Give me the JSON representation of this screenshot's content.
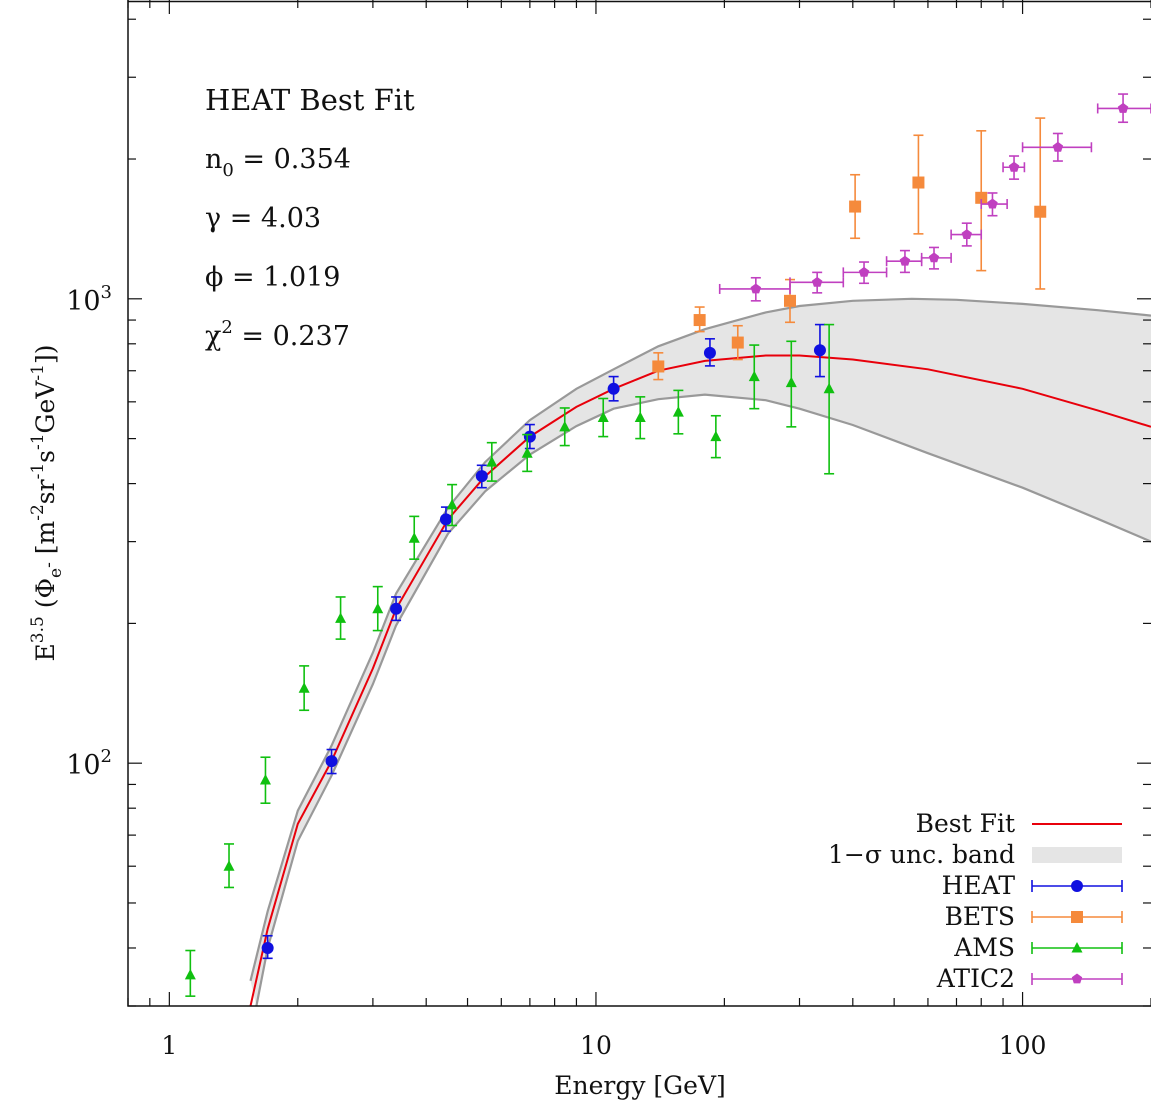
{
  "chart_data": {
    "type": "scatter",
    "title": "",
    "xlabel": "Energy [GeV]",
    "ylabel": "E^{3.5} (Φ_{e^-} [m^{-2}sr^{-1}s^{-1}GeV^{-1}])",
    "x_scale": "log",
    "y_scale": "log",
    "xlim": [
      0.8,
      200
    ],
    "ylim": [
      30,
      4400
    ],
    "x_ticks": [
      {
        "value": 1,
        "label": "1"
      },
      {
        "value": 10,
        "label": "10"
      },
      {
        "value": 100,
        "label": "100"
      }
    ],
    "y_ticks": [
      {
        "value": 100,
        "base": "10",
        "exp": "2"
      },
      {
        "value": 1000,
        "base": "10",
        "exp": "3"
      }
    ],
    "annotation": {
      "title": "HEAT Best Fit",
      "params": [
        {
          "sym": "n",
          "sub": "0",
          "sup": "",
          "value": "= 0.354"
        },
        {
          "sym": "γ",
          "sub": "",
          "sup": "",
          "value": "= 4.03"
        },
        {
          "sym": "ϕ",
          "sub": "",
          "sup": "",
          "value": "= 1.019"
        },
        {
          "sym": "χ",
          "sub": "",
          "sup": "2",
          "value": "= 0.237"
        }
      ]
    },
    "legend_position": "bottom-right",
    "legend": [
      {
        "label": "Best Fit",
        "kind": "line"
      },
      {
        "label": "1−σ unc. band",
        "kind": "band"
      },
      {
        "label": "HEAT",
        "kind": "circle"
      },
      {
        "label": "BETS",
        "kind": "square"
      },
      {
        "label": "AMS",
        "kind": "triangle"
      },
      {
        "label": "ATIC2",
        "kind": "pentagon"
      }
    ],
    "best_fit": {
      "name": "Best Fit",
      "color": "#e8000b",
      "points": [
        [
          1.55,
          30
        ],
        [
          1.7,
          44
        ],
        [
          2.0,
          74
        ],
        [
          2.4,
          101
        ],
        [
          3.0,
          160
        ],
        [
          3.4,
          215
        ],
        [
          4.5,
          335
        ],
        [
          5.5,
          415
        ],
        [
          7.0,
          505
        ],
        [
          9.0,
          585
        ],
        [
          11.0,
          640
        ],
        [
          14.0,
          700
        ],
        [
          18.0,
          735
        ],
        [
          25.0,
          755
        ],
        [
          30.0,
          755
        ],
        [
          40.0,
          740
        ],
        [
          60.0,
          705
        ],
        [
          100.0,
          640
        ],
        [
          150.0,
          575
        ],
        [
          200.0,
          530
        ]
      ]
    },
    "band": {
      "name": "1−σ unc. band",
      "color": "#e5e5e5",
      "edge_color": "#999999",
      "upper": [
        [
          1.55,
          34
        ],
        [
          1.7,
          48
        ],
        [
          2.0,
          79
        ],
        [
          2.4,
          109
        ],
        [
          3.0,
          173
        ],
        [
          3.4,
          232
        ],
        [
          4.5,
          355
        ],
        [
          5.5,
          445
        ],
        [
          7.0,
          548
        ],
        [
          9.0,
          640
        ],
        [
          11.0,
          705
        ],
        [
          14.0,
          790
        ],
        [
          18.0,
          860
        ],
        [
          25.0,
          935
        ],
        [
          30.0,
          965
        ],
        [
          40.0,
          990
        ],
        [
          55.0,
          1000
        ],
        [
          70.0,
          995
        ],
        [
          100.0,
          975
        ],
        [
          150.0,
          945
        ],
        [
          200.0,
          920
        ]
      ],
      "lower": [
        [
          1.6,
          30
        ],
        [
          1.7,
          40
        ],
        [
          2.0,
          68
        ],
        [
          2.4,
          94
        ],
        [
          3.0,
          148
        ],
        [
          3.4,
          198
        ],
        [
          4.5,
          312
        ],
        [
          5.5,
          385
        ],
        [
          7.0,
          462
        ],
        [
          9.0,
          532
        ],
        [
          11.0,
          580
        ],
        [
          14.0,
          608
        ],
        [
          18.0,
          622
        ],
        [
          25.0,
          605
        ],
        [
          30.0,
          580
        ],
        [
          40.0,
          535
        ],
        [
          60.0,
          465
        ],
        [
          100.0,
          392
        ],
        [
          150.0,
          336
        ],
        [
          200.0,
          300
        ]
      ]
    },
    "series": [
      {
        "name": "HEAT",
        "marker": "circle",
        "color": "#1010e0",
        "points": [
          {
            "x": 1.7,
            "y": 40,
            "ylo": 38,
            "yhi": 42.5
          },
          {
            "x": 2.4,
            "y": 101,
            "ylo": 95,
            "yhi": 107
          },
          {
            "x": 3.4,
            "y": 215,
            "ylo": 203,
            "yhi": 228
          },
          {
            "x": 4.45,
            "y": 335,
            "ylo": 316,
            "yhi": 356
          },
          {
            "x": 5.4,
            "y": 415,
            "ylo": 392,
            "yhi": 438
          },
          {
            "x": 7.0,
            "y": 505,
            "ylo": 476,
            "yhi": 536
          },
          {
            "x": 11.0,
            "y": 640,
            "ylo": 603,
            "yhi": 680
          },
          {
            "x": 18.5,
            "y": 765,
            "ylo": 717,
            "yhi": 820
          },
          {
            "x": 33.5,
            "y": 775,
            "ylo": 680,
            "yhi": 880
          }
        ]
      },
      {
        "name": "BETS",
        "marker": "square",
        "color": "#f58a3c",
        "points": [
          {
            "x": 14.0,
            "y": 715,
            "ylo": 670,
            "yhi": 765
          },
          {
            "x": 17.5,
            "y": 900,
            "ylo": 850,
            "yhi": 960
          },
          {
            "x": 21.5,
            "y": 805,
            "ylo": 740,
            "yhi": 875
          },
          {
            "x": 28.5,
            "y": 990,
            "ylo": 890,
            "yhi": 1100
          },
          {
            "x": 40.5,
            "y": 1580,
            "ylo": 1350,
            "yhi": 1850
          },
          {
            "x": 57.0,
            "y": 1780,
            "ylo": 1380,
            "yhi": 2250
          },
          {
            "x": 80.0,
            "y": 1650,
            "ylo": 1150,
            "yhi": 2300
          },
          {
            "x": 110.0,
            "y": 1540,
            "ylo": 1050,
            "yhi": 2450
          }
        ]
      },
      {
        "name": "AMS",
        "marker": "triangle",
        "color": "#10c010",
        "points": [
          {
            "x": 1.12,
            "y": 35,
            "ylo": 31.5,
            "yhi": 39.5
          },
          {
            "x": 1.38,
            "y": 60,
            "ylo": 54,
            "yhi": 67
          },
          {
            "x": 1.68,
            "y": 92,
            "ylo": 82,
            "yhi": 103
          },
          {
            "x": 2.07,
            "y": 145,
            "ylo": 130,
            "yhi": 162
          },
          {
            "x": 2.52,
            "y": 205,
            "ylo": 185,
            "yhi": 228
          },
          {
            "x": 3.08,
            "y": 215,
            "ylo": 193,
            "yhi": 240
          },
          {
            "x": 3.75,
            "y": 305,
            "ylo": 275,
            "yhi": 340
          },
          {
            "x": 4.6,
            "y": 360,
            "ylo": 325,
            "yhi": 398
          },
          {
            "x": 5.7,
            "y": 445,
            "ylo": 405,
            "yhi": 490
          },
          {
            "x": 6.9,
            "y": 465,
            "ylo": 425,
            "yhi": 510
          },
          {
            "x": 8.45,
            "y": 530,
            "ylo": 483,
            "yhi": 582
          },
          {
            "x": 10.4,
            "y": 555,
            "ylo": 505,
            "yhi": 610
          },
          {
            "x": 12.7,
            "y": 555,
            "ylo": 500,
            "yhi": 615
          },
          {
            "x": 15.6,
            "y": 570,
            "ylo": 512,
            "yhi": 635
          },
          {
            "x": 19.1,
            "y": 505,
            "ylo": 455,
            "yhi": 560
          },
          {
            "x": 23.5,
            "y": 680,
            "ylo": 580,
            "yhi": 795
          },
          {
            "x": 28.7,
            "y": 660,
            "ylo": 530,
            "yhi": 810
          },
          {
            "x": 35.2,
            "y": 640,
            "ylo": 420,
            "yhi": 880
          }
        ]
      },
      {
        "name": "ATIC2",
        "marker": "pentagon",
        "color": "#c040c0",
        "points": [
          {
            "x": 23.7,
            "y": 1050,
            "ylo": 990,
            "yhi": 1110,
            "xlo": 19.5,
            "xhi": 28.5
          },
          {
            "x": 33.0,
            "y": 1085,
            "ylo": 1030,
            "yhi": 1140,
            "xlo": 28.5,
            "xhi": 38.0
          },
          {
            "x": 42.5,
            "y": 1140,
            "ylo": 1080,
            "yhi": 1200,
            "xlo": 38.0,
            "xhi": 48.0
          },
          {
            "x": 53.0,
            "y": 1205,
            "ylo": 1140,
            "yhi": 1270,
            "xlo": 48.0,
            "xhi": 58.0
          },
          {
            "x": 62.0,
            "y": 1225,
            "ylo": 1160,
            "yhi": 1290,
            "xlo": 58.0,
            "xhi": 68.0
          },
          {
            "x": 74.0,
            "y": 1375,
            "ylo": 1300,
            "yhi": 1455,
            "xlo": 68.0,
            "xhi": 80.0
          },
          {
            "x": 85.0,
            "y": 1600,
            "ylo": 1510,
            "yhi": 1690,
            "xlo": 80.0,
            "xhi": 92.0
          },
          {
            "x": 95.5,
            "y": 1920,
            "ylo": 1810,
            "yhi": 2030,
            "xlo": 90.0,
            "xhi": 101.0
          },
          {
            "x": 121.0,
            "y": 2120,
            "ylo": 1980,
            "yhi": 2270,
            "xlo": 100.0,
            "xhi": 145.0
          },
          {
            "x": 172.0,
            "y": 2570,
            "ylo": 2400,
            "yhi": 2760,
            "xlo": 150.0,
            "xhi": 200.0
          }
        ]
      }
    ]
  }
}
